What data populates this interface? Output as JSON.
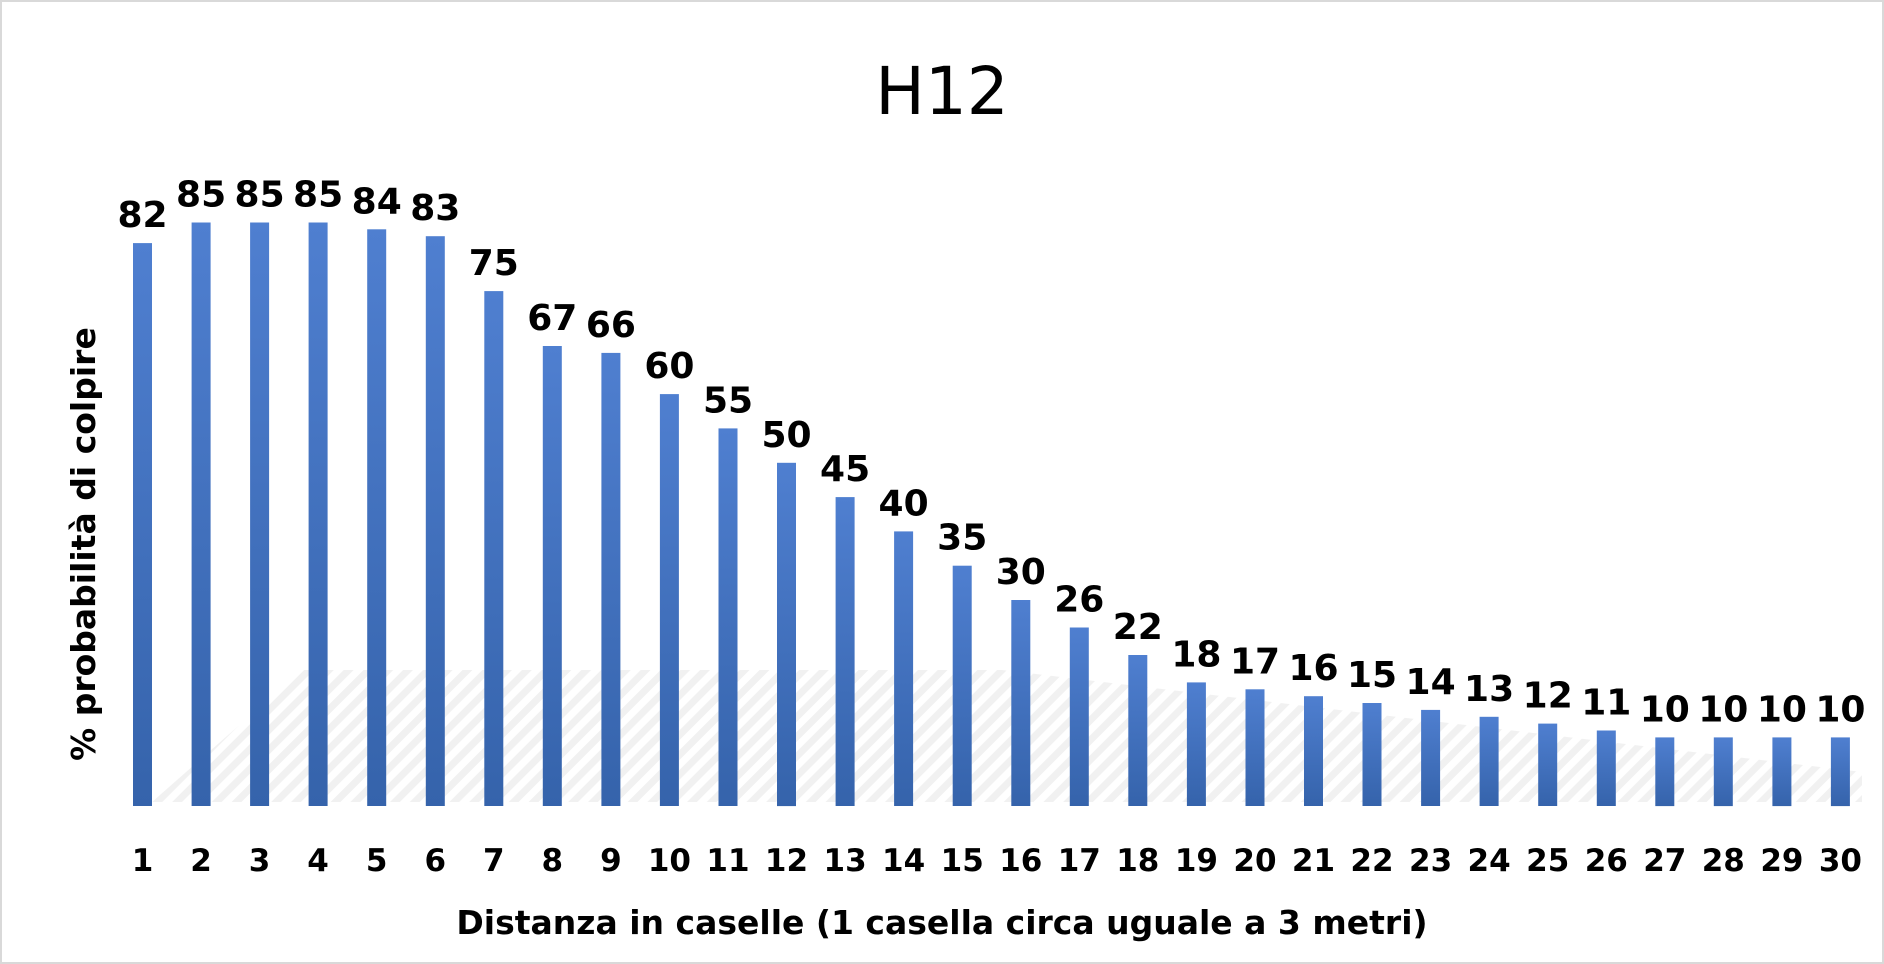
{
  "chart_data": {
    "type": "bar",
    "title": "H12",
    "xlabel": "Distanza in caselle (1 casella circa uguale a 3 metri)",
    "ylabel": "% probabilità di colpire",
    "categories": [
      "1",
      "2",
      "3",
      "4",
      "5",
      "6",
      "7",
      "8",
      "9",
      "10",
      "11",
      "12",
      "13",
      "14",
      "15",
      "16",
      "17",
      "18",
      "19",
      "20",
      "21",
      "22",
      "23",
      "24",
      "25",
      "26",
      "27",
      "28",
      "29",
      "30"
    ],
    "values": [
      82,
      85,
      85,
      85,
      84,
      83,
      75,
      67,
      66,
      60,
      55,
      50,
      45,
      40,
      35,
      30,
      26,
      22,
      18,
      17,
      16,
      15,
      14,
      13,
      12,
      11,
      10,
      10,
      10,
      10
    ],
    "ylim": [
      0,
      100
    ],
    "grid": false,
    "legend": "none",
    "data_labels": true,
    "colors": {
      "bar_top": "#4f7fd0",
      "bar_bottom": "#3563ab",
      "text": "#000000",
      "border": "#d9d9d9"
    }
  }
}
